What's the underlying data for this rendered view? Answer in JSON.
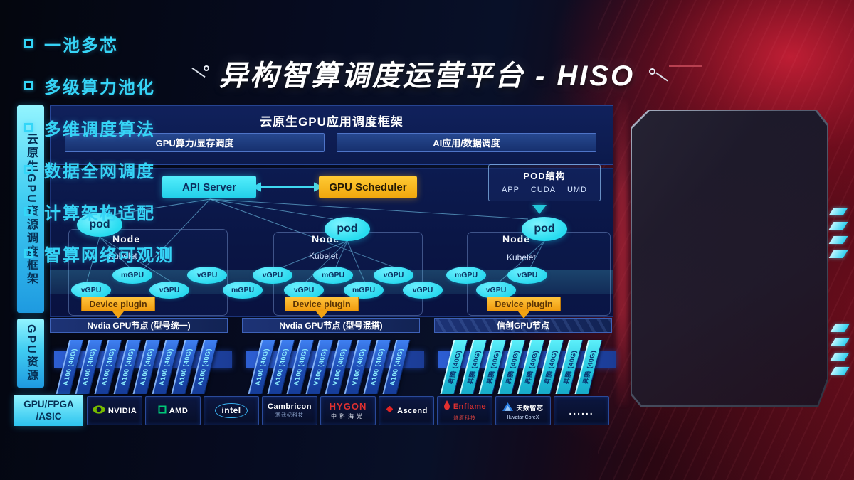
{
  "title": "异构智算调度运营平台 - HISO",
  "sidebar": {
    "framework_label": "云原生GPU资源调度框架",
    "gpu_label": "GPU资源",
    "hardware_line1": "GPU/FPGA",
    "hardware_line2": "/ASIC"
  },
  "top_panel": {
    "title": "云原生GPU应用调度框架",
    "bars": [
      "GPU算力/显存调度",
      "AI应用/数据调度"
    ]
  },
  "control": {
    "api_server": "API Server",
    "gpu_scheduler": "GPU Scheduler",
    "pod_box": {
      "title": "POD结构",
      "items": [
        "APP",
        "CUDA",
        "UMD"
      ]
    }
  },
  "cluster": {
    "node_label": "Node",
    "kubelet_label": "Kubelet",
    "pod_label": "pod",
    "device_plugin_label": "Device plugin",
    "gpu_ovals": [
      "vGPU",
      "mGPU",
      "vGPU",
      "vGPU",
      "mGPU",
      "vGPU",
      "vGPU",
      "mGPU",
      "mGPU",
      "vGPU",
      "vGPU",
      "mGPU",
      "vGPU",
      "vGPU"
    ]
  },
  "gpu_groups": [
    {
      "title": "Nvdia GPU节点 (型号统一)",
      "style": "blue",
      "cards": [
        "A100 (40G)",
        "A100 (40G)",
        "A100 (40G)",
        "A100 (40G)",
        "A100 (40G)",
        "A100 (40G)",
        "A100 (40G)",
        "A100 (40G)"
      ]
    },
    {
      "title": "Nvdia GPU节点 (型号混搭)",
      "style": "blue",
      "cards": [
        "A100 (40G)",
        "A100 (40G)",
        "A100 (40G)",
        "V100 (40G)",
        "V100 (40G)",
        "V100 (40G)",
        "A100 (40G)",
        "A100 (40G)"
      ]
    },
    {
      "title": "信创GPU节点",
      "style": "cyan",
      "cards": [
        "昇腾 (40G)",
        "昇腾 (40G)",
        "昇腾 (40G)",
        "昇腾 (40G)",
        "昇腾 (40G)",
        "昇腾 (40G)",
        "昇腾 (40G)",
        "昇腾 (40G)"
      ]
    }
  ],
  "vendors": [
    {
      "id": "nvidia",
      "icon": "nvidia-icon",
      "line1": "NVIDIA",
      "line2": ""
    },
    {
      "id": "amd",
      "icon": "amd-icon",
      "line1": "AMD",
      "line2": ""
    },
    {
      "id": "intel",
      "icon": "",
      "line1": "intel",
      "line2": ""
    },
    {
      "id": "cambricon",
      "icon": "",
      "line1": "Cambricon",
      "line2": "寒武纪科技"
    },
    {
      "id": "hygon",
      "icon": "",
      "line1": "HYGON",
      "line2": "中科海光"
    },
    {
      "id": "ascend",
      "icon": "ascend-icon",
      "line1": "Ascend",
      "line2": ""
    },
    {
      "id": "enflame",
      "icon": "enflame-icon",
      "line1": "Enflame",
      "line2": "燧原科技"
    },
    {
      "id": "iluvatar",
      "icon": "iluvatar-icon",
      "line1": "天数智芯",
      "line2": "Iluvatar CoreX"
    },
    {
      "id": "dots",
      "icon": "",
      "line1": "......",
      "line2": ""
    }
  ],
  "features": {
    "items": [
      "一池多芯",
      "多级算力池化",
      "多维调度算法",
      "数据全网调度",
      "计算架构适配",
      "智算网络可观测"
    ]
  },
  "colors": {
    "accent_cyan": "#35e3f5",
    "accent_orange": "#f5b014",
    "card_blue": "#1c4ab2",
    "background_red": "#4a0c18",
    "panel_navy": "#0c1b50"
  }
}
